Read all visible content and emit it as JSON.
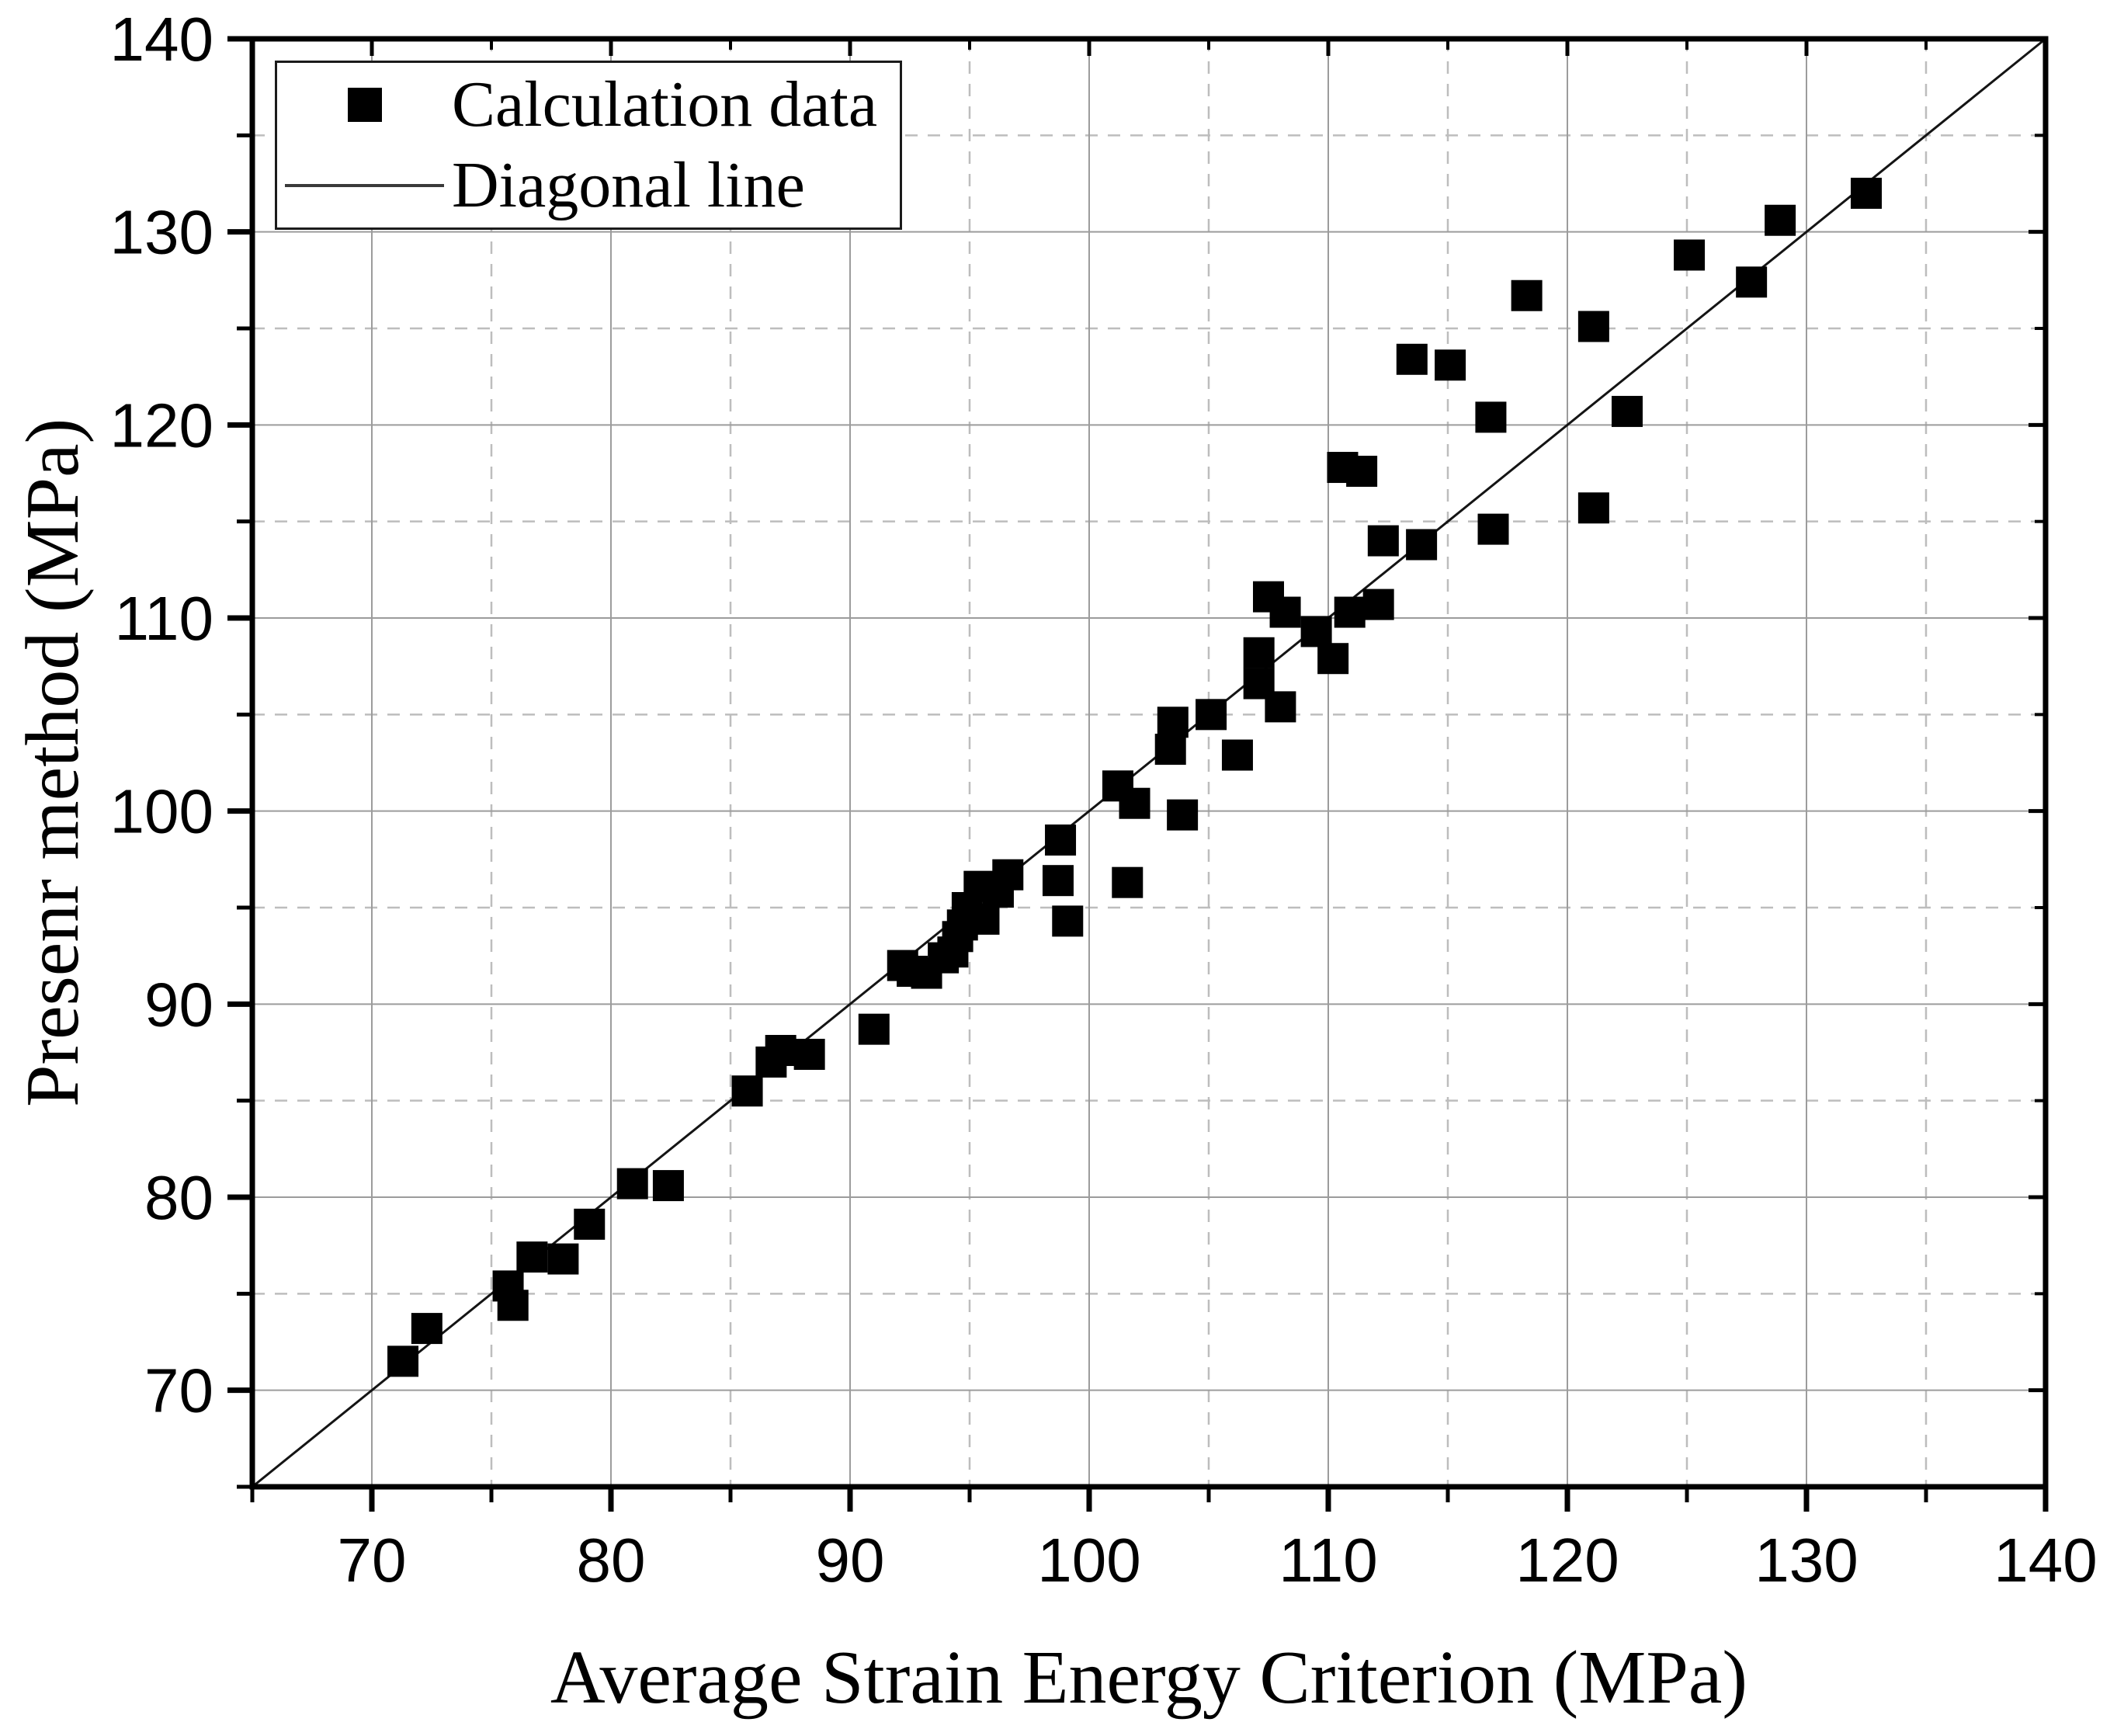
{
  "figure": {
    "background": "#ffffff",
    "frame_color": "#000000",
    "major_grid_color": "#9c9c9c",
    "minor_grid_color": "#bdbdbd",
    "marker_color": "#000000",
    "diagonal_color": "#141414"
  },
  "chart_data": {
    "type": "scatter",
    "xlabel": "Average Strain Energy Criterion (MPa)",
    "ylabel": "Presenr method (MPa)",
    "xlim": [
      65,
      140
    ],
    "ylim": [
      65,
      140
    ],
    "x_ticks": [
      70,
      80,
      90,
      100,
      110,
      120,
      130,
      140
    ],
    "y_ticks": [
      70,
      80,
      90,
      100,
      110,
      120,
      130,
      140
    ],
    "minor_ticks": [
      65,
      75,
      85,
      95,
      105,
      115,
      125,
      135
    ],
    "grid": {
      "major": "solid",
      "minor": "dashed"
    },
    "legend": {
      "position": "top-left",
      "entries": [
        {
          "label": "Calculation data",
          "marker": "square"
        },
        {
          "label": "Diagonal line",
          "marker": "line"
        }
      ]
    },
    "series": [
      {
        "name": "Calculation data",
        "type": "scatter",
        "marker": "square",
        "points": [
          [
            71.3,
            71.5
          ],
          [
            72.3,
            73.2
          ],
          [
            75.7,
            75.4
          ],
          [
            75.9,
            74.4
          ],
          [
            76.7,
            76.9
          ],
          [
            78.0,
            76.8
          ],
          [
            79.1,
            78.6
          ],
          [
            80.9,
            80.7
          ],
          [
            82.4,
            80.6
          ],
          [
            85.7,
            85.5
          ],
          [
            86.7,
            87.0
          ],
          [
            87.1,
            87.6
          ],
          [
            88.3,
            87.4
          ],
          [
            91.0,
            88.7
          ],
          [
            92.2,
            92.0
          ],
          [
            92.6,
            91.7
          ],
          [
            93.2,
            91.6
          ],
          [
            93.9,
            92.4
          ],
          [
            94.3,
            92.7
          ],
          [
            94.5,
            93.5
          ],
          [
            94.7,
            94.1
          ],
          [
            94.9,
            95.0
          ],
          [
            95.4,
            96.1
          ],
          [
            95.6,
            94.4
          ],
          [
            96.2,
            95.8
          ],
          [
            96.6,
            96.7
          ],
          [
            98.7,
            96.4
          ],
          [
            98.8,
            98.5
          ],
          [
            99.1,
            94.3
          ],
          [
            101.2,
            101.3
          ],
          [
            101.9,
            100.4
          ],
          [
            101.6,
            96.3
          ],
          [
            103.4,
            103.2
          ],
          [
            103.5,
            104.6
          ],
          [
            103.9,
            99.8
          ],
          [
            105.1,
            105.0
          ],
          [
            106.2,
            102.9
          ],
          [
            107.1,
            108.2
          ],
          [
            107.1,
            106.6
          ],
          [
            107.5,
            111.1
          ],
          [
            108.0,
            105.4
          ],
          [
            108.2,
            110.3
          ],
          [
            109.5,
            109.3
          ],
          [
            110.2,
            107.9
          ],
          [
            110.9,
            110.3
          ],
          [
            110.6,
            117.8
          ],
          [
            111.4,
            117.6
          ],
          [
            112.1,
            110.7
          ],
          [
            112.3,
            114.0
          ],
          [
            113.9,
            113.8
          ],
          [
            113.5,
            123.4
          ],
          [
            115.1,
            123.1
          ],
          [
            116.8,
            120.4
          ],
          [
            116.9,
            114.6
          ],
          [
            118.3,
            126.7
          ],
          [
            121.1,
            125.1
          ],
          [
            121.1,
            115.7
          ],
          [
            122.5,
            120.7
          ],
          [
            125.1,
            128.8
          ],
          [
            127.7,
            127.4
          ],
          [
            128.9,
            130.6
          ],
          [
            132.5,
            132.0
          ]
        ]
      },
      {
        "name": "Diagonal line",
        "type": "line",
        "points": [
          [
            65,
            65
          ],
          [
            140,
            140
          ]
        ]
      }
    ]
  }
}
